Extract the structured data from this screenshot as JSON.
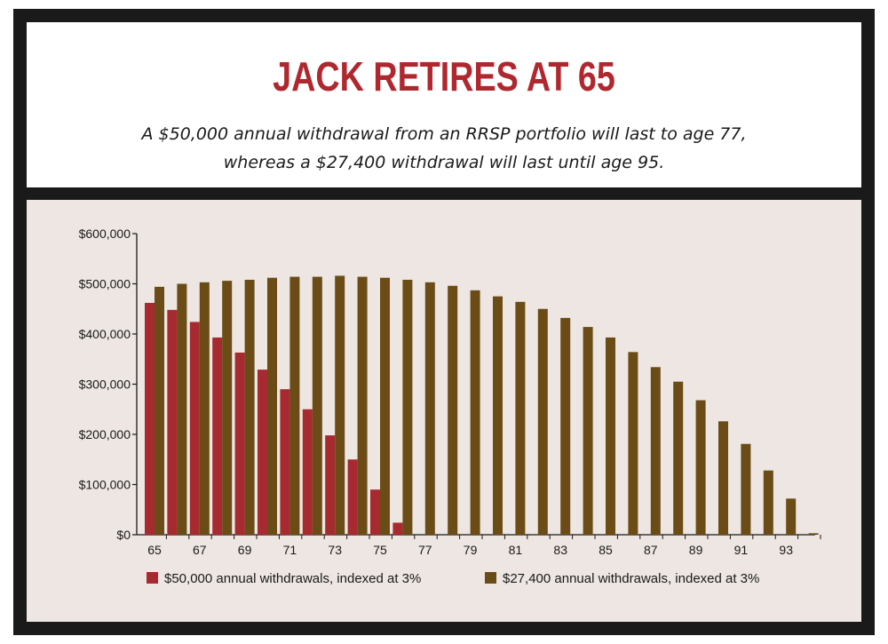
{
  "header": {
    "title": "JACK RETIRES AT 65",
    "subtitle_line1": "A $50,000 annual withdrawal from an RRSP portfolio will last to age 77,",
    "subtitle_line2": "whereas a $27,400 withdrawal will last until age 95."
  },
  "colors": {
    "series1": "#a62a30",
    "series2": "#6b4c16",
    "panel": "#ede6e2",
    "frame": "#1a1a1a",
    "title": "#b0282f"
  },
  "chart_data": {
    "type": "bar",
    "title": "JACK RETIRES AT 65",
    "xlabel": "",
    "ylabel": "",
    "ylim": [
      0,
      600000
    ],
    "yticks": [
      0,
      100000,
      200000,
      300000,
      400000,
      500000,
      600000
    ],
    "ytick_labels": [
      "$0",
      "$100,000",
      "$200,000",
      "$300,000",
      "$400,000",
      "$500,000",
      "$600,000"
    ],
    "categories": [
      65,
      66,
      67,
      68,
      69,
      70,
      71,
      72,
      73,
      74,
      75,
      76,
      77,
      78,
      79,
      80,
      81,
      82,
      83,
      84,
      85,
      86,
      87,
      88,
      89,
      90,
      91,
      92,
      93,
      94
    ],
    "xtick_labels": [
      "65",
      "67",
      "69",
      "71",
      "73",
      "75",
      "77",
      "79",
      "81",
      "83",
      "85",
      "87",
      "89",
      "91",
      "93"
    ],
    "grid": false,
    "legend_position": "bottom",
    "series": [
      {
        "name": "$50,000 annual withdrawals, indexed at 3%",
        "values": [
          462000,
          448000,
          424000,
          393000,
          363000,
          329000,
          290000,
          250000,
          198000,
          150000,
          90000,
          24000,
          0,
          0,
          0,
          0,
          0,
          0,
          0,
          0,
          0,
          0,
          0,
          0,
          0,
          0,
          0,
          0,
          0,
          0
        ]
      },
      {
        "name": "$27,400 annual withdrawals, indexed at 3%",
        "values": [
          494000,
          500000,
          503000,
          506000,
          508000,
          512000,
          514000,
          514000,
          516000,
          514000,
          512000,
          508000,
          503000,
          496000,
          487000,
          475000,
          464000,
          450000,
          432000,
          414000,
          393000,
          364000,
          334000,
          305000,
          268000,
          226000,
          181000,
          128000,
          72000,
          3000
        ]
      }
    ]
  }
}
